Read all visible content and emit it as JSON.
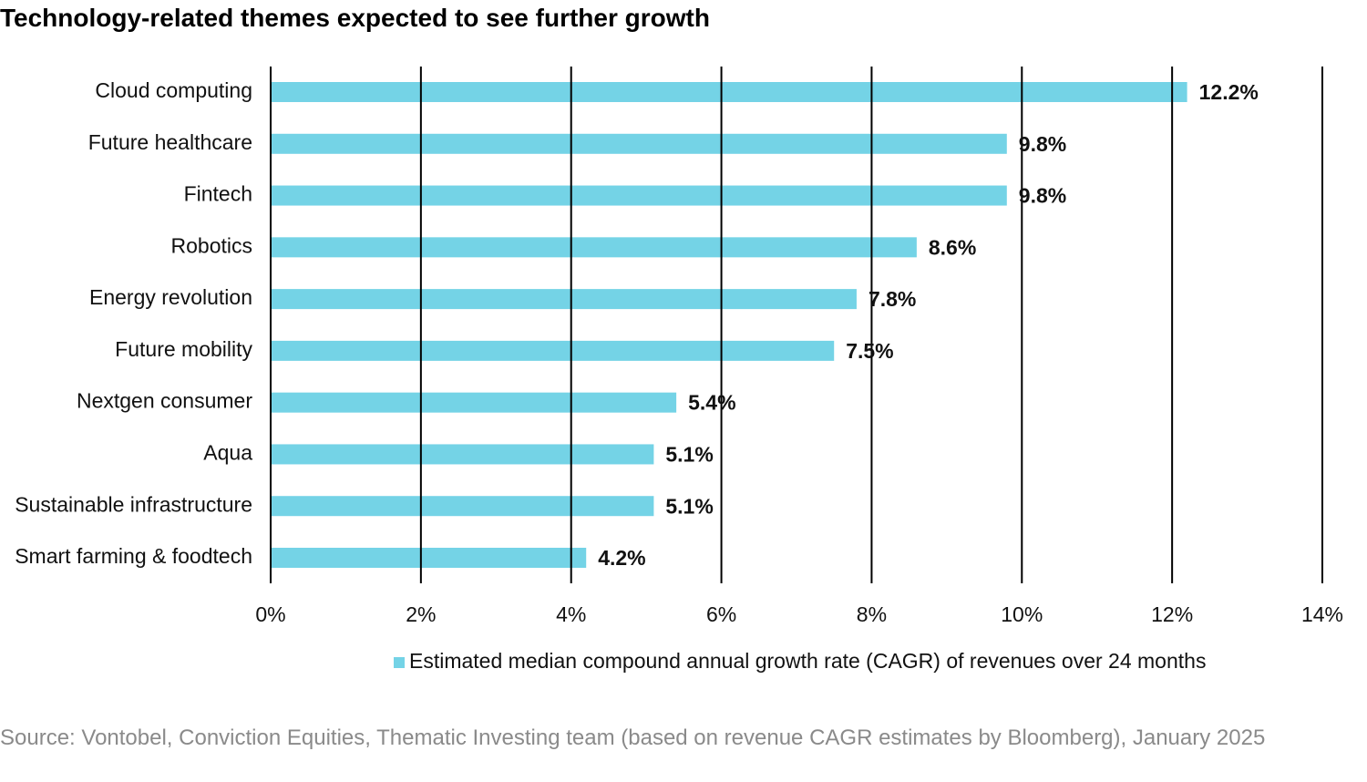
{
  "chart_data": {
    "type": "bar",
    "orientation": "horizontal",
    "title": "Technology-related themes expected to see further growth",
    "categories": [
      "Cloud computing",
      "Future healthcare",
      "Fintech",
      "Robotics",
      "Energy revolution",
      "Future mobility",
      "Nextgen consumer",
      "Aqua",
      "Sustainable infrastructure",
      "Smart farming & foodtech"
    ],
    "series": [
      {
        "name": "Estimated median compound annual growth rate (CAGR) of revenues over 24 months",
        "color": "#74d3e6",
        "values": [
          12.2,
          9.8,
          9.8,
          8.6,
          7.8,
          7.5,
          5.4,
          5.1,
          5.1,
          4.2
        ],
        "value_labels": [
          "12.2%",
          "9.8%",
          "9.8%",
          "8.6%",
          "7.8%",
          "7.5%",
          "5.4%",
          "5.1%",
          "5.1%",
          "4.2%"
        ]
      }
    ],
    "xlim": [
      0,
      14
    ],
    "xticks": [
      {
        "value": 0,
        "label": "0%"
      },
      {
        "value": 2,
        "label": "2%"
      },
      {
        "value": 4,
        "label": "4%"
      },
      {
        "value": 6,
        "label": "6%"
      },
      {
        "value": 8,
        "label": "8%"
      },
      {
        "value": 10,
        "label": "10%"
      },
      {
        "value": 12,
        "label": "12%"
      },
      {
        "value": 14,
        "label": "14%"
      }
    ],
    "grid": true,
    "legend": "bottom"
  },
  "source": "Source: Vontobel, Conviction Equities, Thematic Investing team (based on revenue CAGR estimates by Bloomberg), January 2025"
}
